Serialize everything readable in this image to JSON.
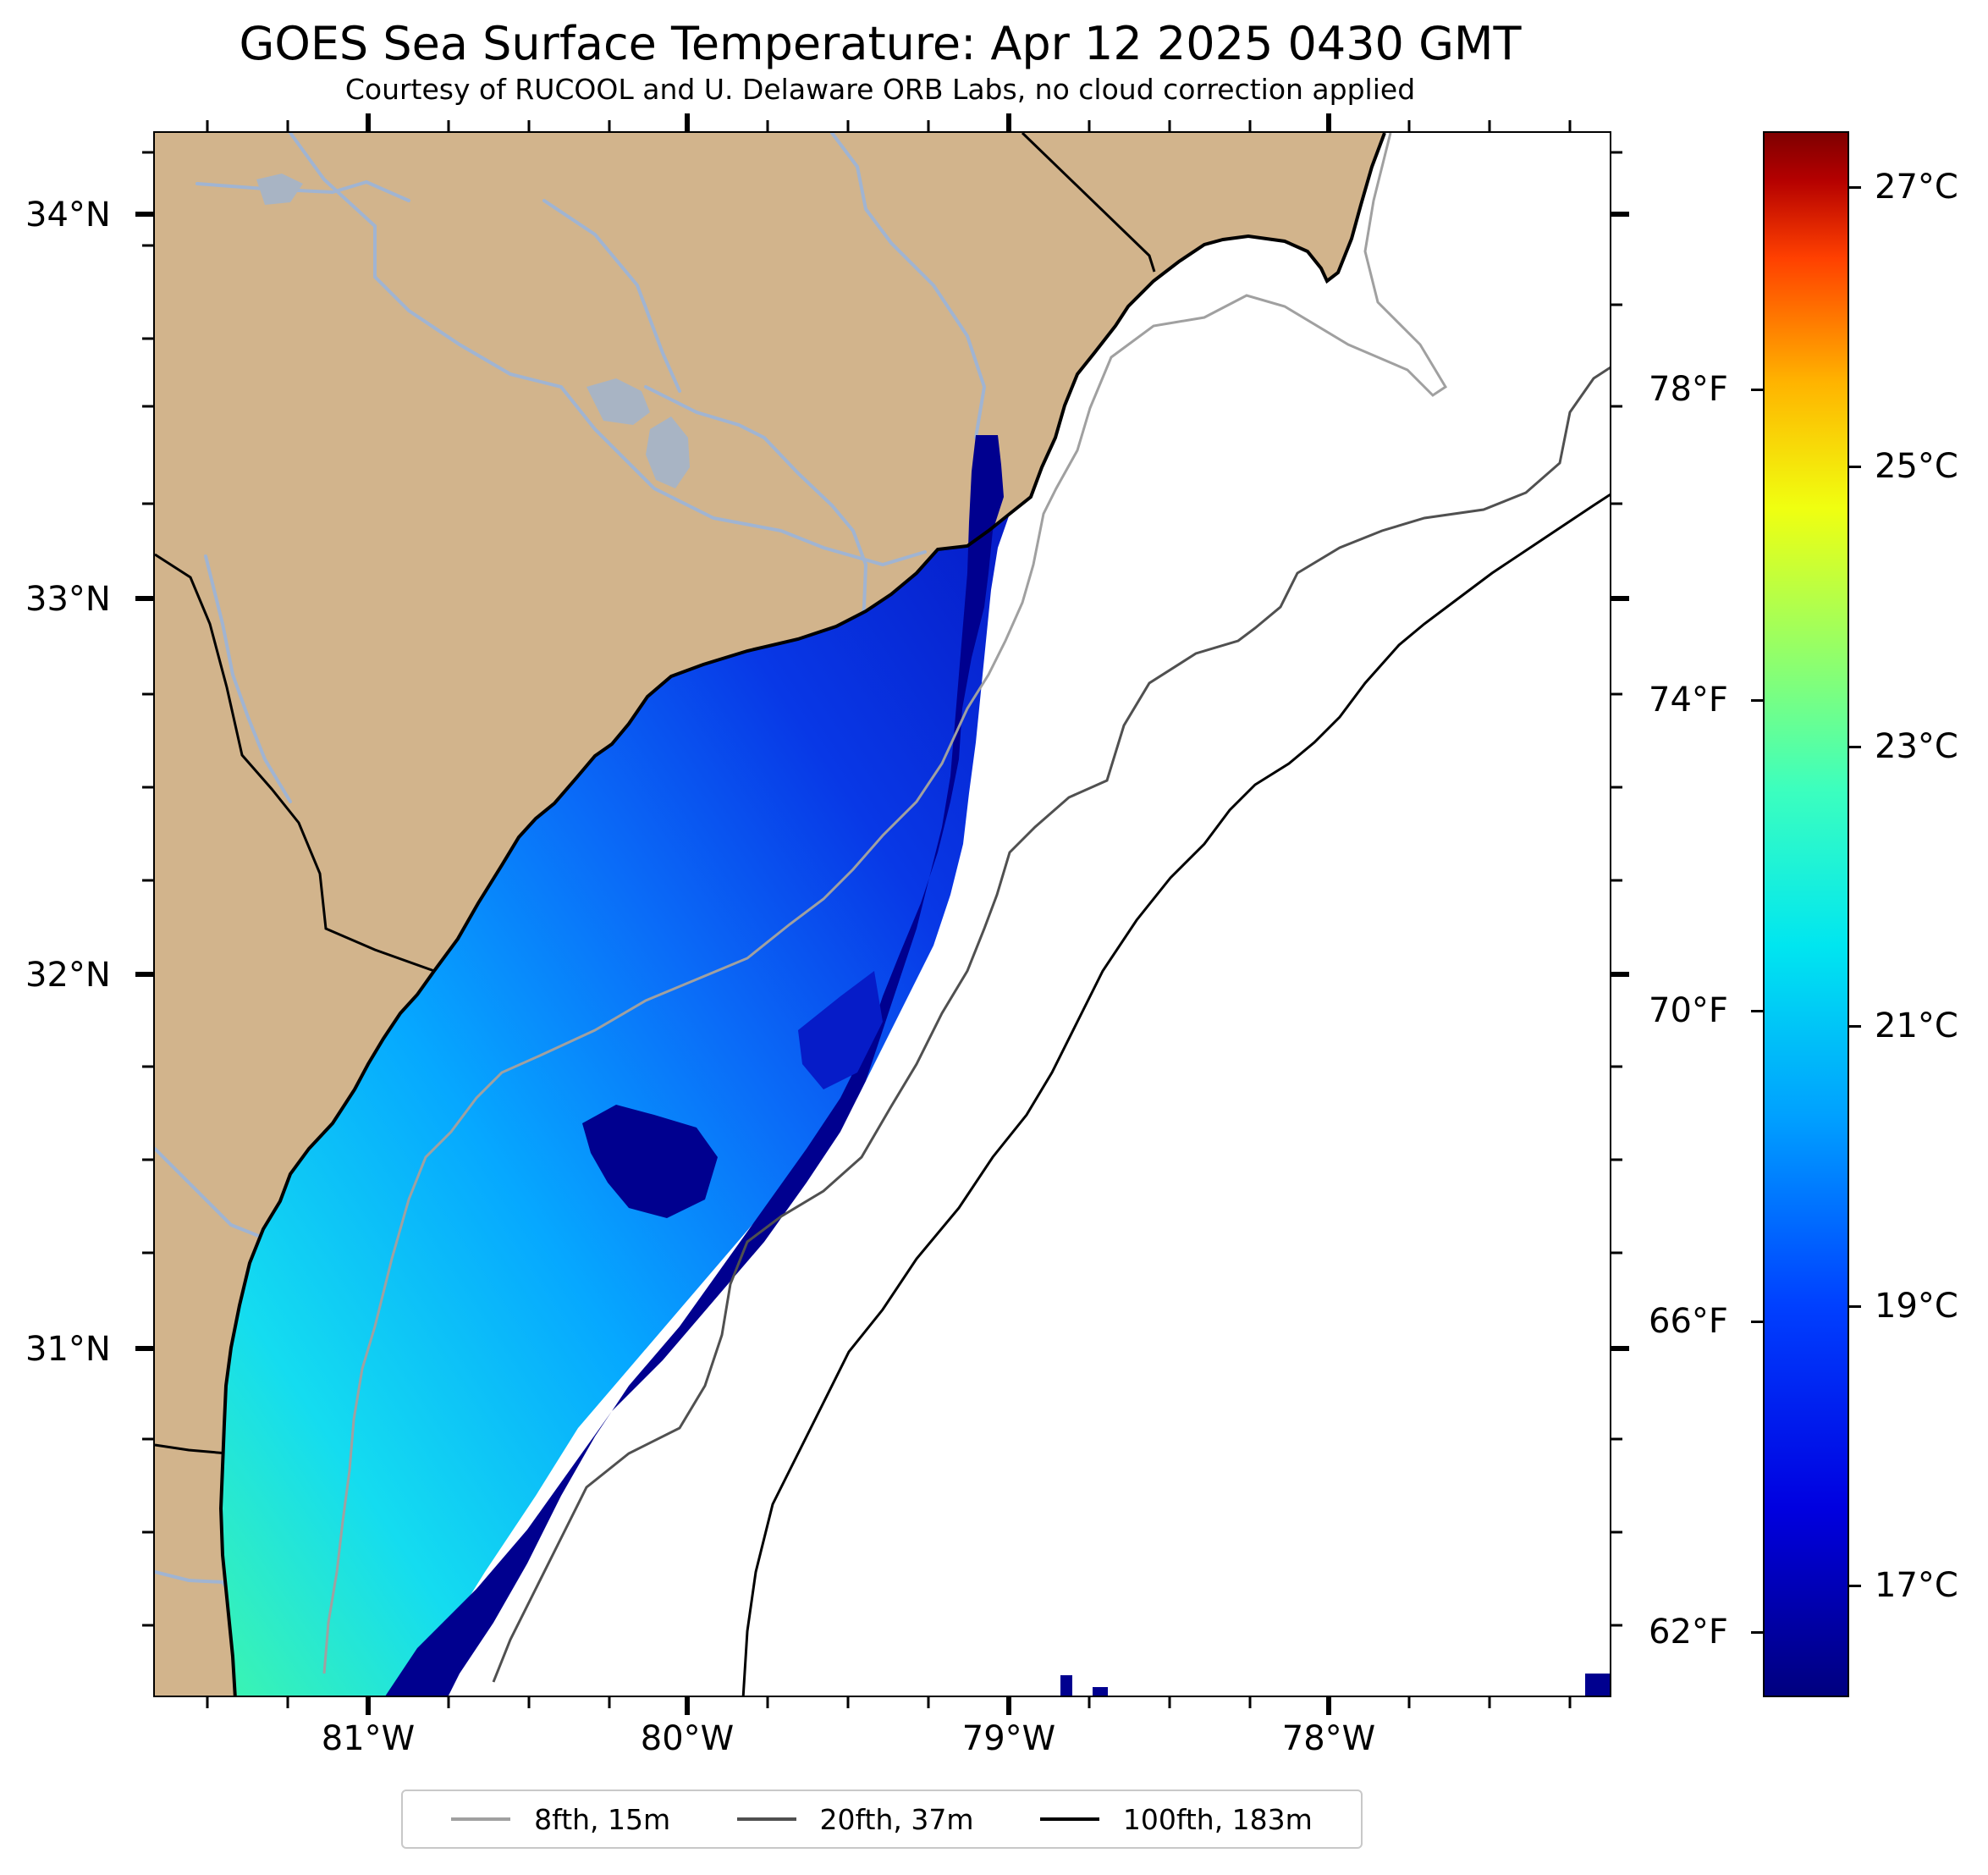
{
  "title": "GOES Sea Surface Temperature: Apr 12 2025 0430 GMT",
  "subtitle": "Courtesy of RUCOOL and U. Delaware ORB Labs, no cloud correction applied",
  "colors": {
    "land": "#d2b48c",
    "rivers": "#a0b4d2",
    "coastline": "#000000",
    "isobath_8fth": "#a0a0a0",
    "isobath_20fth": "#505050",
    "isobath_100fth": "#000000"
  },
  "axes": {
    "lat_labels": [
      "34°N",
      "33°N",
      "32°N",
      "31°N"
    ],
    "lon_labels": [
      "81°W",
      "80°W",
      "79°W",
      "78°W"
    ]
  },
  "colorbar": {
    "celsius_labels": [
      "27°C",
      "25°C",
      "23°C",
      "21°C",
      "19°C",
      "17°C"
    ],
    "fahrenheit_labels": [
      "78°F",
      "74°F",
      "70°F",
      "66°F",
      "62°F"
    ],
    "celsius_values": [
      27,
      25,
      23,
      21,
      19,
      17
    ],
    "fahrenheit_values": [
      78,
      74,
      70,
      66,
      62
    ],
    "range_c": [
      16.2,
      27.4
    ]
  },
  "legend": [
    {
      "label": "8fth, 15m",
      "color": "#a0a0a0"
    },
    {
      "label": "20fth, 37m",
      "color": "#505050"
    },
    {
      "label": "100fth, 183m",
      "color": "#000000"
    }
  ]
}
